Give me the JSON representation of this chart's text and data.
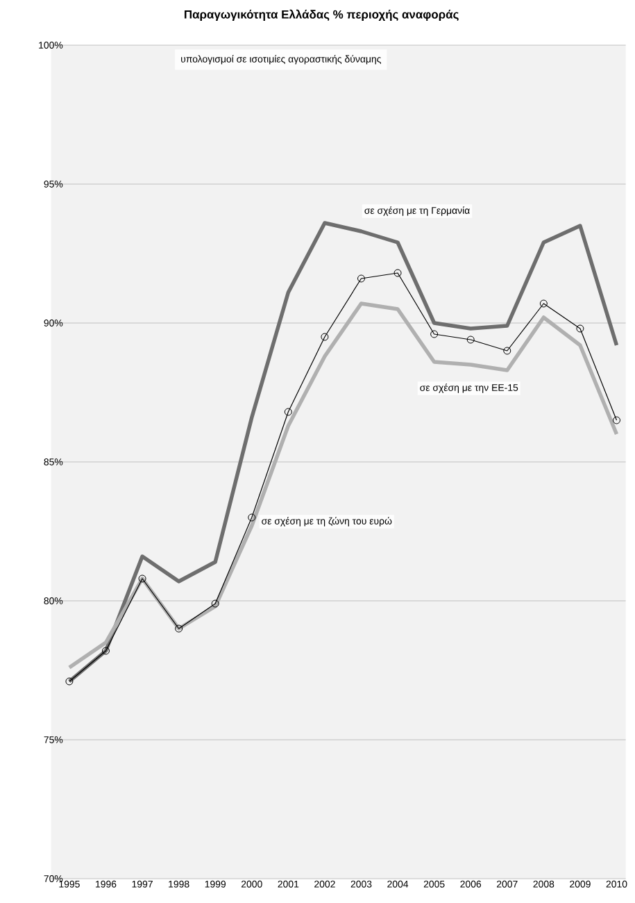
{
  "chart_data": {
    "type": "line",
    "title": "Παραγωγικότητα Ελλάδας % περιοχής αναφοράς",
    "subtitle": "υπολογισμοί σε ισοτιμίες αγοραστικής δύναμης",
    "x": [
      1995,
      1996,
      1997,
      1998,
      1999,
      2000,
      2001,
      2002,
      2003,
      2004,
      2005,
      2006,
      2007,
      2008,
      2009,
      2010
    ],
    "series": [
      {
        "name": "σε σχέση με τη Γερμανία",
        "color": "#6e6e6e",
        "marker": "none",
        "values": [
          77.1,
          78.2,
          81.6,
          80.7,
          81.4,
          86.6,
          91.1,
          93.6,
          93.3,
          92.9,
          90.0,
          89.8,
          89.9,
          92.9,
          93.5,
          89.2
        ]
      },
      {
        "name": "σε σχέση με την ΕΕ-15",
        "color": "#b0b0b0",
        "marker": "none",
        "values": [
          77.6,
          78.5,
          80.8,
          79.0,
          79.8,
          82.7,
          86.3,
          88.8,
          90.7,
          90.5,
          88.6,
          88.5,
          88.3,
          90.2,
          89.2,
          86.0
        ]
      },
      {
        "name": "σε σχέση με τη ζώνη του ευρώ",
        "color": "#000000",
        "marker": "circle",
        "values": [
          77.1,
          78.2,
          80.8,
          79.0,
          79.9,
          83.0,
          86.8,
          89.5,
          91.6,
          91.8,
          89.6,
          89.4,
          89.0,
          90.7,
          89.8,
          86.5
        ]
      }
    ],
    "xlim": [
      1994.5,
      2010.25
    ],
    "xticks": [
      1995,
      1996,
      1997,
      1998,
      1999,
      2000,
      2001,
      2002,
      2003,
      2004,
      2005,
      2006,
      2007,
      2008,
      2009,
      2010
    ],
    "ylim": [
      70,
      100
    ],
    "yticks": [
      {
        "value": 70,
        "label": "70%"
      },
      {
        "value": 75,
        "label": "75%"
      },
      {
        "value": 80,
        "label": "80%"
      },
      {
        "value": 85,
        "label": "85%"
      },
      {
        "value": 90,
        "label": "90%"
      },
      {
        "value": 95,
        "label": "95%"
      },
      {
        "value": 100,
        "label": "100%"
      }
    ],
    "grid": "y"
  }
}
